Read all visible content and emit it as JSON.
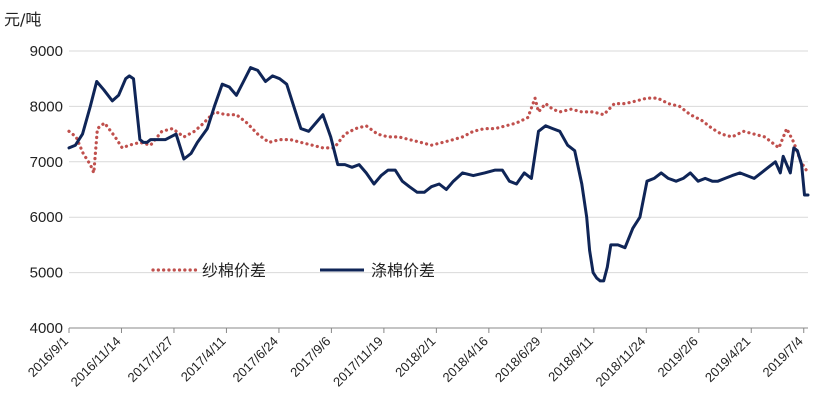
{
  "chart_data": {
    "type": "line",
    "unit_label": "元/吨",
    "ylim": [
      4000,
      9000
    ],
    "yticks": [
      4000,
      5000,
      6000,
      7000,
      8000,
      9000
    ],
    "grid": "horizontal",
    "legend_position": "bottom-left inside plot",
    "x_date_range": [
      "2016-09-01",
      "2019-07-10"
    ],
    "xtick_labels": [
      "2016/9/1",
      "2016/11/14",
      "2017/1/27",
      "2017/4/11",
      "2017/6/24",
      "2017/9/6",
      "2017/11/19",
      "2018/2/1",
      "2018/4/16",
      "2018/6/29",
      "2018/9/11",
      "2018/11/24",
      "2019/2/6",
      "2019/4/21",
      "2019/7/4"
    ],
    "xtick_dates": [
      "2016-09-01",
      "2016-11-14",
      "2017-01-27",
      "2017-04-11",
      "2017-06-24",
      "2017-09-06",
      "2017-11-19",
      "2018-02-01",
      "2018-04-16",
      "2018-06-29",
      "2018-09-11",
      "2018-11-24",
      "2019-02-06",
      "2019-04-21",
      "2019-07-04"
    ],
    "series": [
      {
        "name": "纱棉价差",
        "style": "dotted",
        "color": "#c0504d",
        "x": [
          "2016-09-01",
          "2016-09-11",
          "2016-09-21",
          "2016-10-01",
          "2016-10-06",
          "2016-10-11",
          "2016-10-21",
          "2016-11-05",
          "2016-11-15",
          "2016-11-25",
          "2016-12-10",
          "2016-12-25",
          "2017-01-10",
          "2017-01-25",
          "2017-02-10",
          "2017-02-25",
          "2017-03-10",
          "2017-03-25",
          "2017-04-10",
          "2017-04-25",
          "2017-05-10",
          "2017-05-25",
          "2017-06-10",
          "2017-06-25",
          "2017-07-10",
          "2017-07-25",
          "2017-08-10",
          "2017-08-25",
          "2017-09-10",
          "2017-09-25",
          "2017-10-10",
          "2017-10-25",
          "2017-11-10",
          "2017-11-25",
          "2017-12-10",
          "2017-12-25",
          "2018-01-10",
          "2018-01-25",
          "2018-02-10",
          "2018-02-25",
          "2018-03-10",
          "2018-03-25",
          "2018-04-10",
          "2018-04-25",
          "2018-05-10",
          "2018-05-25",
          "2018-06-10",
          "2018-06-20",
          "2018-06-25",
          "2018-07-05",
          "2018-07-15",
          "2018-07-25",
          "2018-08-10",
          "2018-08-25",
          "2018-09-10",
          "2018-09-25",
          "2018-10-10",
          "2018-10-25",
          "2018-11-10",
          "2018-11-25",
          "2018-12-10",
          "2018-12-25",
          "2019-01-10",
          "2019-01-25",
          "2019-02-10",
          "2019-02-25",
          "2019-03-10",
          "2019-03-25",
          "2019-04-10",
          "2019-04-25",
          "2019-05-10",
          "2019-05-20",
          "2019-05-30",
          "2019-06-10",
          "2019-06-20",
          "2019-06-30",
          "2019-07-05",
          "2019-07-10"
        ],
        "values": [
          7550,
          7450,
          7150,
          6950,
          6800,
          7600,
          7700,
          7450,
          7250,
          7300,
          7350,
          7300,
          7550,
          7600,
          7450,
          7550,
          7700,
          7900,
          7850,
          7850,
          7700,
          7500,
          7350,
          7400,
          7400,
          7350,
          7300,
          7250,
          7250,
          7500,
          7600,
          7650,
          7500,
          7450,
          7450,
          7400,
          7350,
          7300,
          7350,
          7400,
          7450,
          7550,
          7600,
          7600,
          7650,
          7700,
          7800,
          8150,
          7900,
          8050,
          7950,
          7900,
          7950,
          7900,
          7900,
          7850,
          8050,
          8050,
          8100,
          8150,
          8150,
          8050,
          8000,
          7850,
          7750,
          7600,
          7500,
          7450,
          7550,
          7500,
          7450,
          7350,
          7250,
          7600,
          7350,
          7000,
          6900,
          6800
        ]
      },
      {
        "name": "涤棉价差",
        "style": "solid",
        "color": "#0f2557",
        "x": [
          "2016-09-01",
          "2016-09-10",
          "2016-09-20",
          "2016-10-01",
          "2016-10-10",
          "2016-10-20",
          "2016-11-01",
          "2016-11-10",
          "2016-11-20",
          "2016-11-25",
          "2016-12-01",
          "2016-12-10",
          "2016-12-15",
          "2016-12-20",
          "2016-12-25",
          "2016-12-30",
          "2017-01-15",
          "2017-01-30",
          "2017-02-10",
          "2017-02-20",
          "2017-03-01",
          "2017-03-15",
          "2017-03-25",
          "2017-04-05",
          "2017-04-15",
          "2017-04-25",
          "2017-05-05",
          "2017-05-15",
          "2017-05-25",
          "2017-06-05",
          "2017-06-15",
          "2017-06-25",
          "2017-07-05",
          "2017-07-15",
          "2017-07-25",
          "2017-08-05",
          "2017-08-15",
          "2017-08-25",
          "2017-09-05",
          "2017-09-15",
          "2017-09-25",
          "2017-10-05",
          "2017-10-15",
          "2017-10-25",
          "2017-11-05",
          "2017-11-15",
          "2017-11-25",
          "2017-12-05",
          "2017-12-15",
          "2017-12-25",
          "2018-01-05",
          "2018-01-15",
          "2018-01-25",
          "2018-02-05",
          "2018-02-15",
          "2018-02-25",
          "2018-03-10",
          "2018-03-25",
          "2018-04-10",
          "2018-04-25",
          "2018-05-05",
          "2018-05-15",
          "2018-05-25",
          "2018-06-05",
          "2018-06-15",
          "2018-06-25",
          "2018-07-05",
          "2018-07-15",
          "2018-07-25",
          "2018-08-05",
          "2018-08-15",
          "2018-08-25",
          "2018-09-01",
          "2018-09-05",
          "2018-09-10",
          "2018-09-15",
          "2018-09-20",
          "2018-09-25",
          "2018-09-30",
          "2018-10-05",
          "2018-10-15",
          "2018-10-25",
          "2018-11-05",
          "2018-11-15",
          "2018-11-25",
          "2018-12-05",
          "2018-12-15",
          "2018-12-25",
          "2019-01-05",
          "2019-01-15",
          "2019-01-25",
          "2019-02-05",
          "2019-02-15",
          "2019-02-25",
          "2019-03-05",
          "2019-03-15",
          "2019-03-25",
          "2019-04-05",
          "2019-04-15",
          "2019-04-25",
          "2019-05-05",
          "2019-05-15",
          "2019-05-25",
          "2019-06-01",
          "2019-06-05",
          "2019-06-10",
          "2019-06-15",
          "2019-06-20",
          "2019-06-25",
          "2019-07-01",
          "2019-07-05",
          "2019-07-10"
        ],
        "values": [
          7250,
          7300,
          7500,
          8000,
          8450,
          8300,
          8100,
          8200,
          8500,
          8550,
          8500,
          7400,
          7350,
          7350,
          7400,
          7400,
          7400,
          7500,
          7050,
          7150,
          7350,
          7600,
          8000,
          8400,
          8350,
          8200,
          8450,
          8700,
          8650,
          8450,
          8550,
          8500,
          8400,
          8000,
          7600,
          7550,
          7700,
          7850,
          7450,
          6950,
          6950,
          6900,
          6950,
          6800,
          6600,
          6750,
          6850,
          6850,
          6650,
          6550,
          6450,
          6450,
          6550,
          6600,
          6500,
          6650,
          6800,
          6750,
          6800,
          6850,
          6850,
          6650,
          6600,
          6800,
          6700,
          7550,
          7650,
          7600,
          7550,
          7300,
          7200,
          6600,
          6000,
          5400,
          5000,
          4900,
          4850,
          4850,
          5100,
          5500,
          5500,
          5450,
          5800,
          6000,
          6650,
          6700,
          6800,
          6700,
          6650,
          6700,
          6800,
          6650,
          6700,
          6650,
          6650,
          6700,
          6750,
          6800,
          6750,
          6700,
          6800,
          6900,
          7000,
          6800,
          7100,
          6950,
          6800,
          7250,
          7200,
          6950,
          6400,
          6400
        ]
      }
    ]
  }
}
